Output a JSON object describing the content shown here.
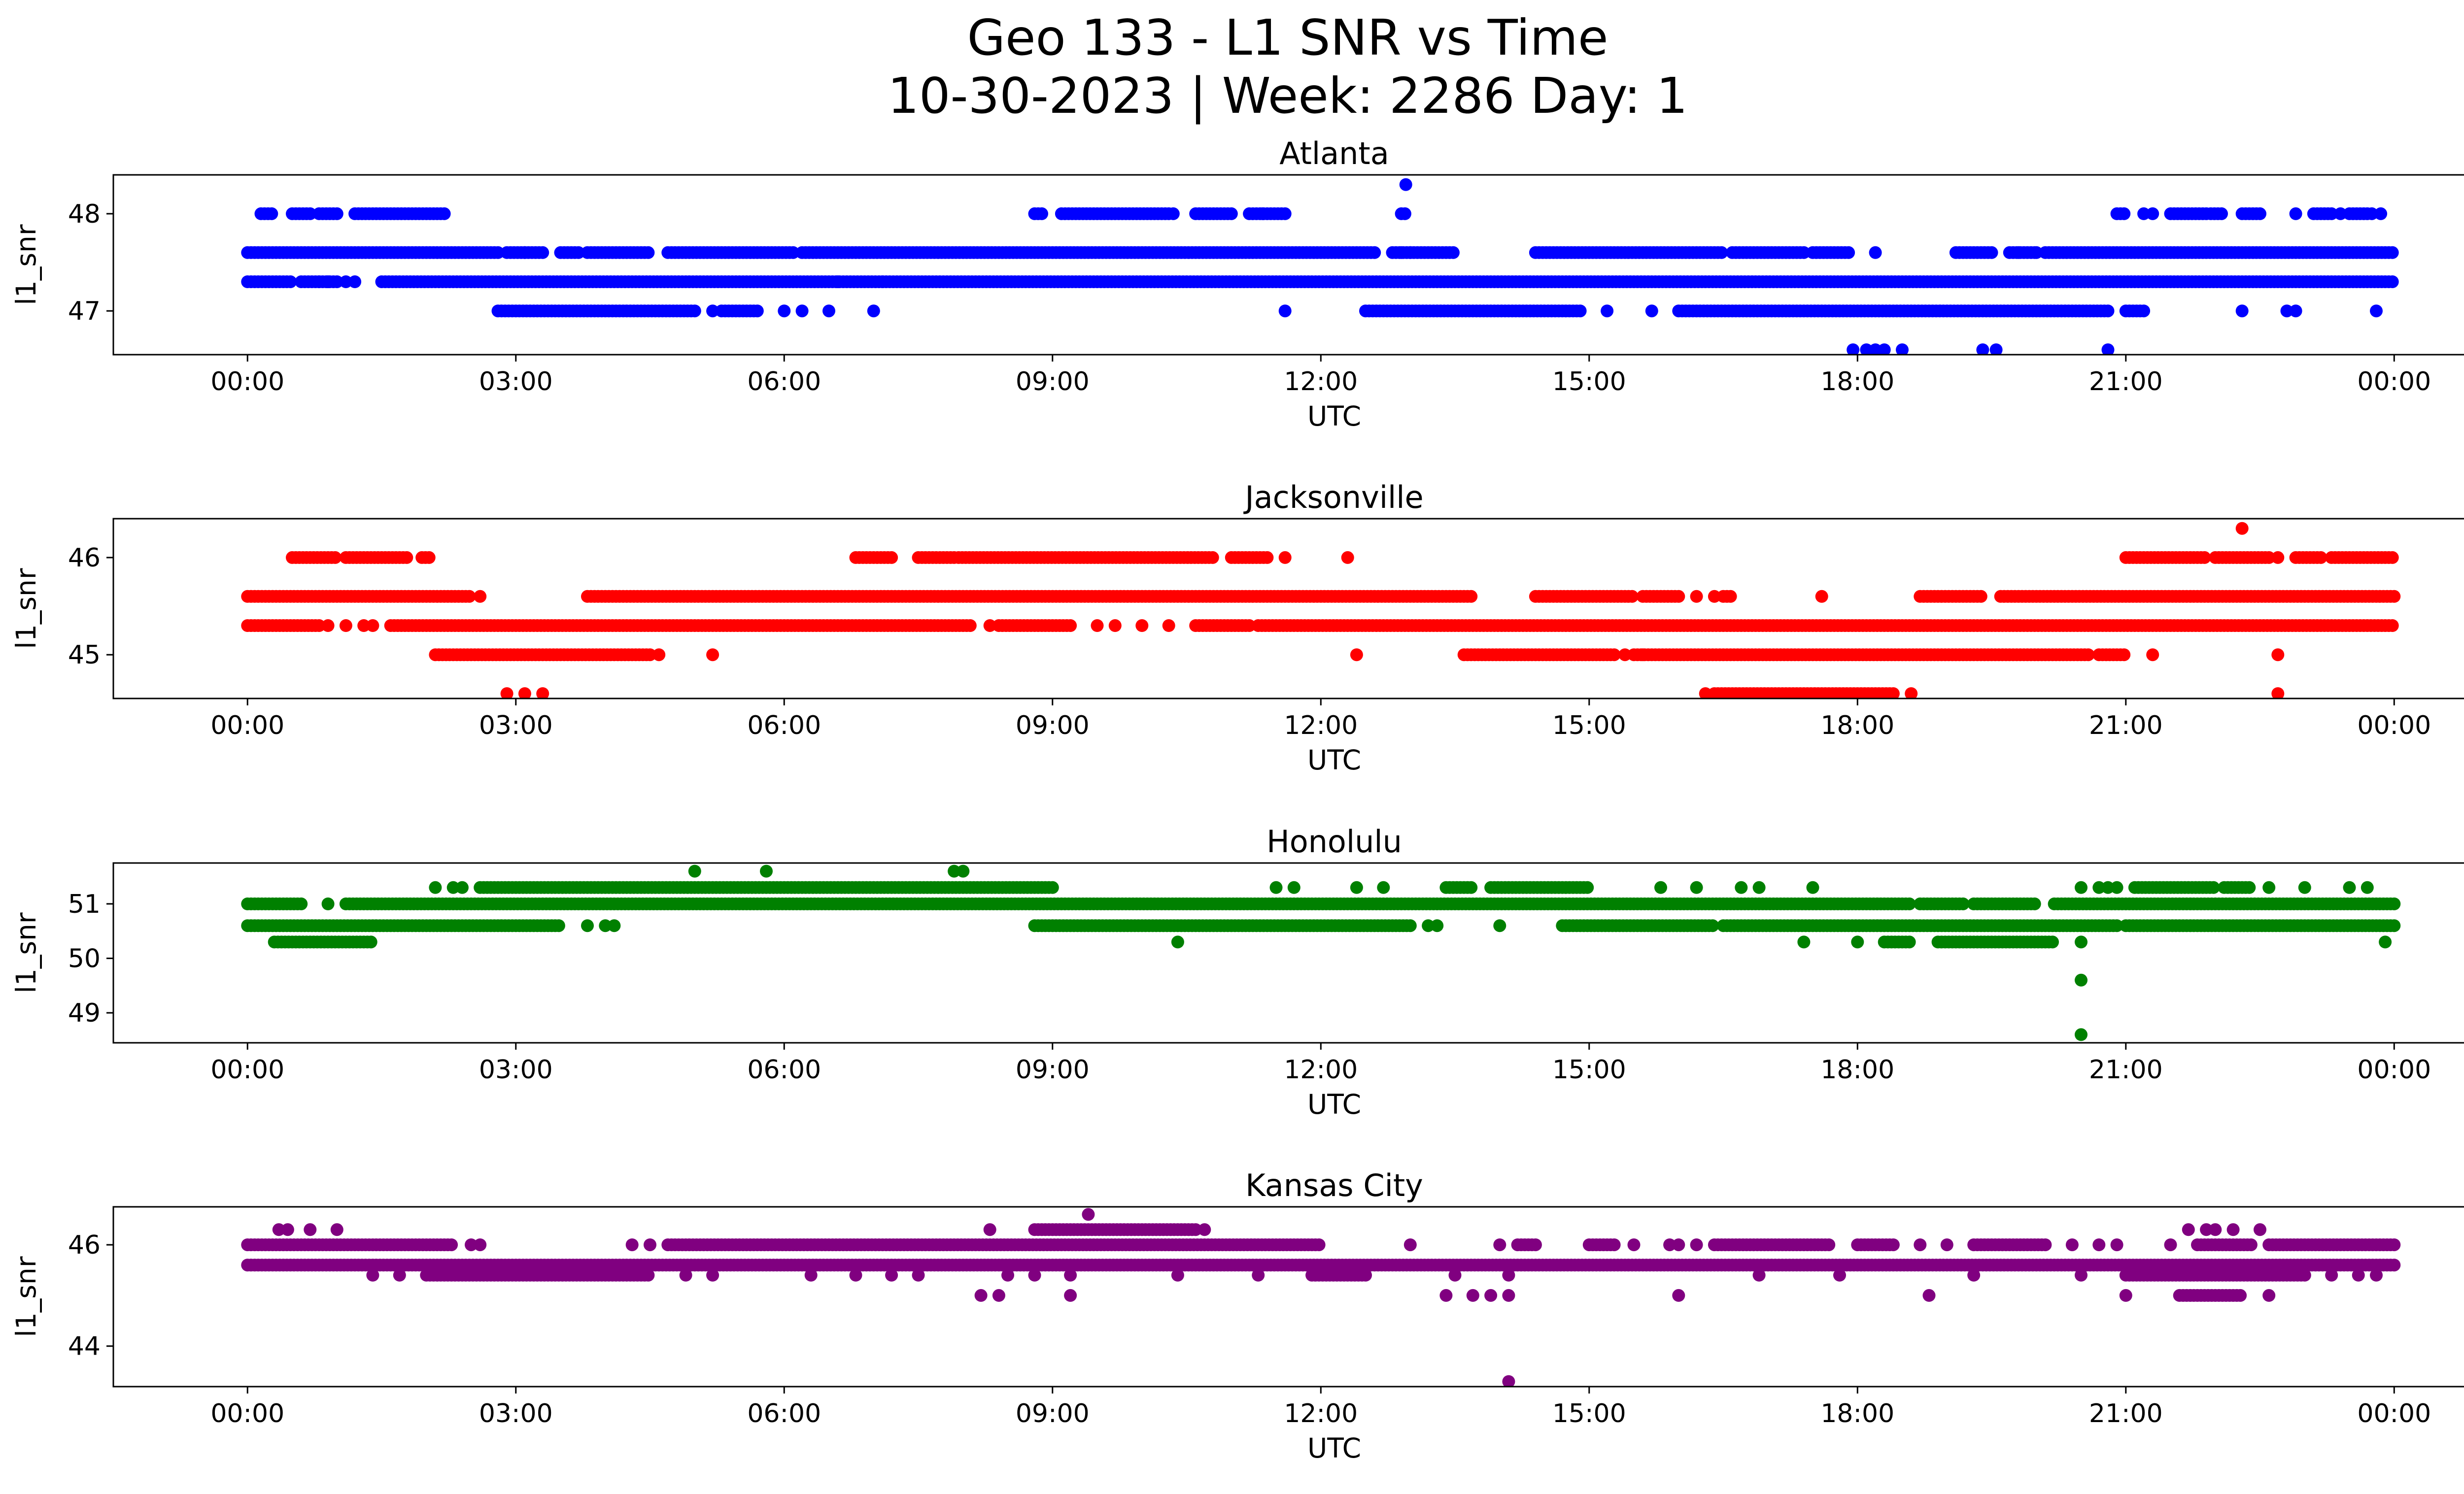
{
  "figure": {
    "title_line1": "Geo 133 - L1 SNR vs Time",
    "title_line2": "10-30-2023 | Week: 2286 Day: 1"
  },
  "chart_data": [
    {
      "type": "scatter",
      "title": "Atlanta",
      "xlabel": "UTC",
      "ylabel": "l1_snr",
      "color": "#0000ff",
      "xlim": [
        -1.5,
        25.8
      ],
      "ylim": [
        46.55,
        48.4
      ],
      "xticks": [
        "00:00",
        "03:00",
        "06:00",
        "09:00",
        "12:00",
        "15:00",
        "18:00",
        "21:00",
        "00:00"
      ],
      "yticks": [
        47,
        48
      ],
      "series": [
        {
          "y": 48.0,
          "segments": [
            [
              0.15,
              0.3
            ],
            [
              0.5,
              0.7
            ],
            [
              0.8,
              1.0
            ],
            [
              1.2,
              2.2
            ],
            [
              8.8,
              8.9
            ],
            [
              9.1,
              10.3
            ],
            [
              10.6,
              11.0
            ],
            [
              11.2,
              11.6
            ],
            [
              12.9,
              12.95
            ],
            [
              20.9,
              21.0
            ],
            [
              21.5,
              21.9
            ],
            [
              21.95,
              22.1
            ],
            [
              22.3,
              22.5
            ],
            [
              23.1,
              23.3
            ],
            [
              23.5,
              23.7
            ]
          ],
          "points": [
            10.35,
            11.35,
            21.2,
            21.3,
            22.9,
            23.4,
            23.75,
            23.85
          ]
        },
        {
          "y": 47.6,
          "segments": [
            [
              0.0,
              2.8
            ],
            [
              2.9,
              3.3
            ],
            [
              3.5,
              3.7
            ],
            [
              3.8,
              4.5
            ],
            [
              4.7,
              6.1
            ],
            [
              6.2,
              12.6
            ],
            [
              12.8,
              13.5
            ],
            [
              14.4,
              16.5
            ],
            [
              16.6,
              17.4
            ],
            [
              17.5,
              17.9
            ],
            [
              19.1,
              19.5
            ],
            [
              19.7,
              20.0
            ],
            [
              20.1,
              24.0
            ]
          ],
          "points": [
            3.1,
            13.0,
            18.2,
            19.8,
            20.0,
            12.9
          ]
        },
        {
          "y": 47.3,
          "segments": [
            [
              0.0,
              0.5
            ],
            [
              0.6,
              1.0
            ],
            [
              1.5,
              24.0
            ]
          ],
          "points": [
            0.8,
            0.9,
            1.1,
            1.2,
            6.6,
            7.1
          ]
        },
        {
          "y": 47.0,
          "segments": [
            [
              2.8,
              5.0
            ],
            [
              5.3,
              5.7
            ],
            [
              12.5,
              14.9
            ],
            [
              16.0,
              20.8
            ],
            [
              21.0,
              21.2
            ]
          ],
          "points": [
            5.2,
            6.0,
            6.2,
            6.5,
            7.0,
            11.6,
            15.2,
            15.7,
            22.3,
            22.8,
            22.9,
            23.8
          ]
        },
        {
          "y": 46.6,
          "points": [
            17.95,
            18.1,
            18.2,
            18.3,
            18.5,
            19.4,
            19.55,
            20.8
          ]
        },
        {
          "y": 48.3,
          "points": [
            12.95
          ]
        }
      ]
    },
    {
      "type": "scatter",
      "title": "Jacksonville",
      "xlabel": "UTC",
      "ylabel": "l1_snr",
      "color": "#ff0000",
      "xlim": [
        -1.5,
        25.8
      ],
      "ylim": [
        44.55,
        46.4
      ],
      "xticks": [
        "00:00",
        "03:00",
        "06:00",
        "09:00",
        "12:00",
        "15:00",
        "18:00",
        "21:00",
        "00:00"
      ],
      "yticks": [
        45,
        46
      ],
      "series": [
        {
          "y": 46.0,
          "segments": [
            [
              0.5,
              1.0
            ],
            [
              1.1,
              1.8
            ],
            [
              1.95,
              2.05
            ],
            [
              6.8,
              7.2
            ],
            [
              7.5,
              7.9
            ],
            [
              7.95,
              10.8
            ],
            [
              11.0,
              11.4
            ],
            [
              21.0,
              21.9
            ],
            [
              22.0,
              22.6
            ],
            [
              22.9,
              23.2
            ],
            [
              23.3,
              24.0
            ]
          ],
          "points": [
            11.6,
            12.3,
            22.7
          ]
        },
        {
          "y": 45.6,
          "segments": [
            [
              0.0,
              2.5
            ],
            [
              3.8,
              13.7
            ],
            [
              14.4,
              15.5
            ],
            [
              15.6,
              16.0
            ],
            [
              16.5,
              16.6
            ],
            [
              18.7,
              19.4
            ],
            [
              19.6,
              24.0
            ]
          ],
          "points": [
            2.6,
            16.2,
            16.4,
            17.6
          ]
        },
        {
          "y": 45.3,
          "segments": [
            [
              0.0,
              0.8
            ],
            [
              1.6,
              8.1
            ],
            [
              8.4,
              9.2
            ],
            [
              10.6,
              11.2
            ],
            [
              11.3,
              24.0
            ]
          ],
          "points": [
            0.9,
            1.1,
            1.3,
            1.4,
            8.3,
            9.5,
            9.7,
            10.0,
            10.3
          ]
        },
        {
          "y": 45.0,
          "segments": [
            [
              2.1,
              4.5
            ],
            [
              13.6,
              15.3
            ],
            [
              15.5,
              20.6
            ],
            [
              20.7,
              21.0
            ]
          ],
          "points": [
            4.6,
            5.2,
            12.4,
            15.4,
            15.6,
            21.3,
            22.7
          ]
        },
        {
          "y": 44.6,
          "segments": [
            [
              16.4,
              18.4
            ]
          ],
          "points": [
            2.9,
            3.1,
            3.3,
            16.3,
            18.6,
            22.7
          ]
        },
        {
          "y": 46.3,
          "points": [
            22.3
          ]
        }
      ]
    },
    {
      "type": "scatter",
      "title": "Honolulu",
      "xlabel": "UTC",
      "ylabel": "l1_snr",
      "color": "#008000",
      "xlim": [
        -1.5,
        25.8
      ],
      "ylim": [
        48.45,
        51.75
      ],
      "xticks": [
        "00:00",
        "03:00",
        "06:00",
        "09:00",
        "12:00",
        "15:00",
        "18:00",
        "21:00",
        "00:00"
      ],
      "yticks": [
        49,
        50,
        51
      ],
      "series": [
        {
          "y": 51.6,
          "points": [
            5.0,
            5.8,
            7.9,
            8.0
          ]
        },
        {
          "y": 51.3,
          "segments": [
            [
              2.6,
              9.0
            ],
            [
              13.4,
              13.7
            ],
            [
              13.9,
              15.0
            ],
            [
              21.1,
              22.0
            ],
            [
              22.1,
              22.4
            ]
          ],
          "points": [
            2.1,
            2.3,
            2.4,
            11.5,
            11.7,
            12.4,
            12.7,
            15.8,
            16.2,
            16.7,
            16.9,
            17.5,
            20.5,
            20.7,
            20.8,
            20.9,
            22.6,
            23.0,
            23.5,
            23.7
          ]
        },
        {
          "y": 51.0,
          "segments": [
            [
              0.0,
              0.6
            ],
            [
              1.1,
              18.6
            ],
            [
              18.7,
              19.2
            ],
            [
              19.3,
              20.0
            ],
            [
              20.2,
              24.0
            ]
          ],
          "points": [
            0.9
          ]
        },
        {
          "y": 50.6,
          "segments": [
            [
              0.0,
              3.5
            ],
            [
              8.8,
              13.0
            ],
            [
              14.7,
              16.4
            ],
            [
              16.5,
              20.9
            ],
            [
              21.0,
              24.0
            ]
          ],
          "points": [
            3.8,
            4.0,
            4.1,
            13.2,
            13.3,
            14.0
          ]
        },
        {
          "y": 50.3,
          "segments": [
            [
              0.3,
              1.4
            ],
            [
              18.3,
              18.6
            ],
            [
              18.9,
              20.2
            ]
          ],
          "points": [
            10.4,
            17.4,
            18.0,
            20.5,
            23.9
          ]
        },
        {
          "y": 49.6,
          "points": [
            20.5
          ]
        },
        {
          "y": 48.6,
          "points": [
            20.5
          ]
        }
      ]
    },
    {
      "type": "scatter",
      "title": "Kansas City",
      "xlabel": "UTC",
      "ylabel": "l1_snr",
      "color": "#800080",
      "xlim": [
        -1.5,
        25.8
      ],
      "ylim": [
        43.2,
        46.75
      ],
      "xticks": [
        "00:00",
        "03:00",
        "06:00",
        "09:00",
        "12:00",
        "15:00",
        "18:00",
        "21:00",
        "00:00"
      ],
      "yticks": [
        44,
        46
      ],
      "series": [
        {
          "y": 46.6,
          "points": [
            9.4
          ]
        },
        {
          "y": 46.3,
          "segments": [
            [
              8.8,
              10.6
            ]
          ],
          "points": [
            0.35,
            0.45,
            0.7,
            1.0,
            8.3,
            10.7,
            21.7,
            21.9,
            22.0,
            22.2,
            22.5
          ]
        },
        {
          "y": 46.0,
          "segments": [
            [
              0.0,
              2.3
            ],
            [
              4.7,
              12.0
            ],
            [
              14.2,
              14.4
            ],
            [
              15.0,
              15.3
            ],
            [
              16.4,
              17.7
            ],
            [
              18.0,
              18.4
            ],
            [
              19.3,
              20.1
            ],
            [
              21.8,
              22.4
            ],
            [
              22.6,
              24.0
            ]
          ],
          "points": [
            2.5,
            2.6,
            4.3,
            4.5,
            13.0,
            14.0,
            15.5,
            15.9,
            16.0,
            16.2,
            18.7,
            19.0,
            20.4,
            20.7,
            20.9,
            21.5
          ]
        },
        {
          "y": 45.6,
          "segments": [
            [
              0.0,
              24.0
            ]
          ],
          "points": []
        },
        {
          "y": 45.4,
          "segments": [
            [
              2.0,
              4.5
            ],
            [
              11.9,
              12.5
            ],
            [
              21.0,
              23.0
            ]
          ],
          "points": [
            1.4,
            1.7,
            4.9,
            5.2,
            6.3,
            6.8,
            7.2,
            7.5,
            8.5,
            8.8,
            9.2,
            10.4,
            11.3,
            13.5,
            14.1,
            16.9,
            17.8,
            19.3,
            20.5,
            23.3,
            23.6,
            23.8
          ]
        },
        {
          "y": 45.0,
          "segments": [
            [
              21.6,
              22.3
            ]
          ],
          "points": [
            8.2,
            8.4,
            9.2,
            13.4,
            13.7,
            13.9,
            14.1,
            16.0,
            18.8,
            21.0,
            22.6
          ]
        },
        {
          "y": 43.3,
          "points": [
            14.1
          ]
        }
      ]
    }
  ]
}
